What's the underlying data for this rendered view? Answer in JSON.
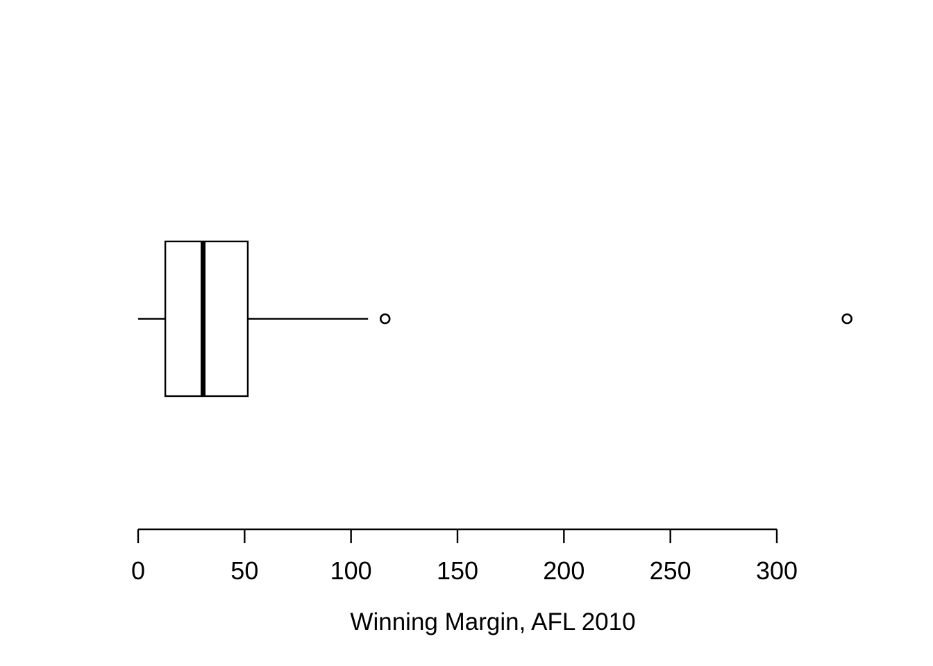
{
  "figure": {
    "background_color": "#FFFFFF",
    "stroke_color": "#000000"
  },
  "chart_data": {
    "type": "boxplot",
    "orientation": "horizontal",
    "title": "",
    "xlabel": "Winning Margin, AFL 2010",
    "ylabel": "",
    "x_ticks": [
      0,
      50,
      100,
      150,
      200,
      250,
      300
    ],
    "x_tick_labels": [
      "0",
      "50",
      "100",
      "150",
      "200",
      "250",
      "300"
    ],
    "axis_range": [
      0,
      300
    ],
    "grid": false,
    "legend": "none",
    "series": [
      {
        "name": "winning-margin-afl-2010",
        "whisker_min": 0,
        "q1": 12.75,
        "median": 30.5,
        "q3": 51.5,
        "whisker_max": 108,
        "outliers": [
          116,
          333
        ]
      }
    ]
  }
}
